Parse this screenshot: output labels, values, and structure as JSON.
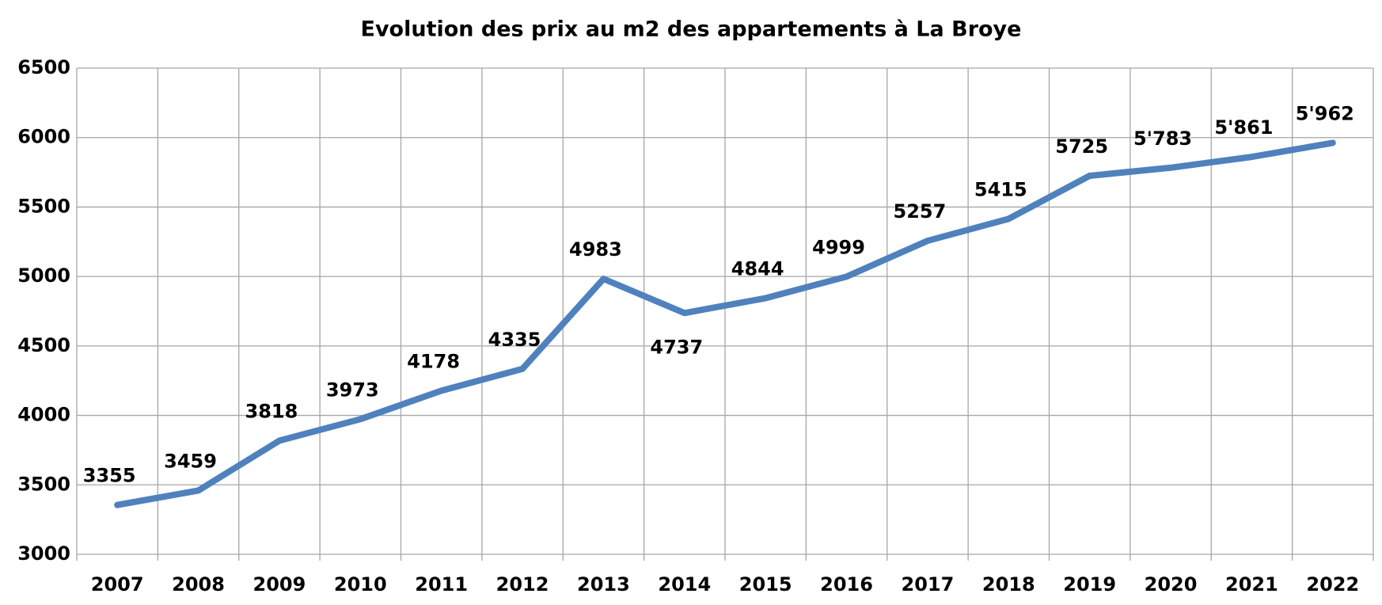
{
  "chart_data": {
    "type": "line",
    "title": "Evolution des prix au m2 des appartements à La Broye",
    "categories": [
      "2007",
      "2008",
      "2009",
      "2010",
      "2011",
      "2012",
      "2013",
      "2014",
      "2015",
      "2016",
      "2017",
      "2018",
      "2019",
      "2020",
      "2021",
      "2022"
    ],
    "values": [
      3355,
      3459,
      3818,
      3973,
      4178,
      4335,
      4983,
      4737,
      4844,
      4999,
      5257,
      5415,
      5725,
      5783,
      5861,
      5962
    ],
    "value_labels": [
      "3355",
      "3459",
      "3818",
      "3973",
      "4178",
      "4335",
      "4983",
      "4737",
      "4844",
      "4999",
      "5257",
      "5415",
      "5725",
      "5'783",
      "5'861",
      "5'962"
    ],
    "color": "#4f81bd",
    "ylim": [
      3000,
      6500
    ],
    "yticks": [
      3000,
      3500,
      4000,
      4500,
      5000,
      5500,
      6000,
      6500
    ],
    "grid": true
  }
}
